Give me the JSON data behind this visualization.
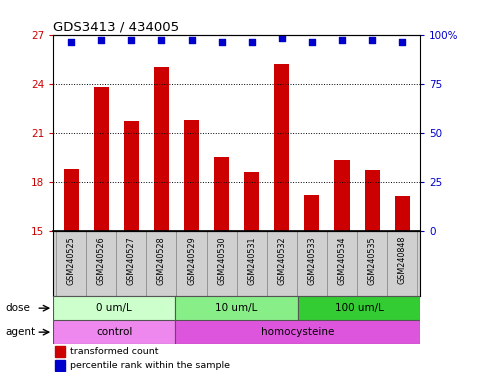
{
  "title": "GDS3413 / 434005",
  "samples": [
    "GSM240525",
    "GSM240526",
    "GSM240527",
    "GSM240528",
    "GSM240529",
    "GSM240530",
    "GSM240531",
    "GSM240532",
    "GSM240533",
    "GSM240534",
    "GSM240535",
    "GSM240848"
  ],
  "bar_values": [
    18.8,
    23.8,
    21.7,
    25.0,
    21.8,
    19.5,
    18.6,
    25.2,
    17.2,
    19.3,
    18.7,
    17.1
  ],
  "percentile_values": [
    96.0,
    97.0,
    97.0,
    97.0,
    97.0,
    96.0,
    96.0,
    98.0,
    96.0,
    97.0,
    97.0,
    96.0
  ],
  "bar_color": "#cc0000",
  "dot_color": "#0000cc",
  "ylim_left": [
    15,
    27
  ],
  "ylim_right": [
    0,
    100
  ],
  "yticks_left": [
    15,
    18,
    21,
    24,
    27
  ],
  "yticks_right": [
    0,
    25,
    50,
    75,
    100
  ],
  "ytick_labels_right": [
    "0",
    "25",
    "50",
    "75",
    "100%"
  ],
  "grid_values": [
    18,
    21,
    24
  ],
  "dose_groups": [
    {
      "label": "0 um/L",
      "start": 0,
      "end": 4,
      "color": "#ccffcc"
    },
    {
      "label": "10 um/L",
      "start": 4,
      "end": 8,
      "color": "#88ee88"
    },
    {
      "label": "100 um/L",
      "start": 8,
      "end": 12,
      "color": "#33cc33"
    }
  ],
  "agent_groups": [
    {
      "label": "control",
      "start": 0,
      "end": 4,
      "color": "#ee88ee"
    },
    {
      "label": "homocysteine",
      "start": 4,
      "end": 12,
      "color": "#dd55dd"
    }
  ],
  "dose_label": "dose",
  "agent_label": "agent",
  "legend_bar_label": "transformed count",
  "legend_dot_label": "percentile rank within the sample",
  "background_color": "#ffffff",
  "plot_bg_color": "#ffffff",
  "axis_label_color_left": "#cc0000",
  "axis_label_color_right": "#0000cc",
  "label_box_color": "#d0d0d0"
}
